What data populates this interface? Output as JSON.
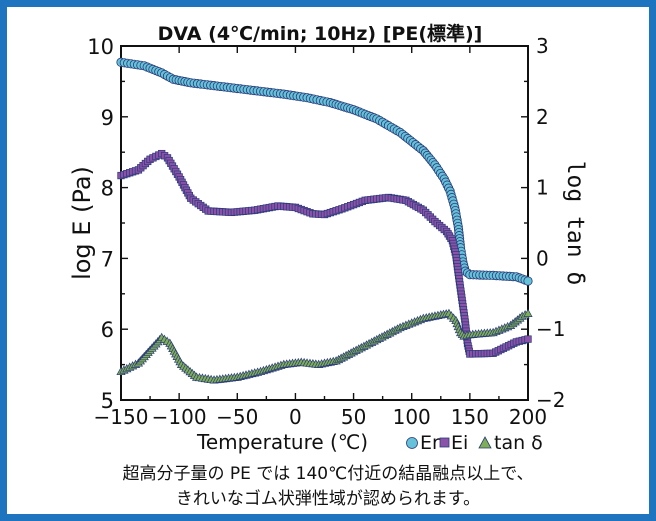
{
  "colors": {
    "frame": "#1f74bf",
    "Er": "#66c2d8",
    "Ei": "#8a52a8",
    "tan_delta": "#7fae57",
    "marker_outline": "#2a3a7a"
  },
  "caption": {
    "line1": "超高分子量の PE では 140℃付近の結晶融点以上で、",
    "line2": "きれいなゴム状弾性域が認められます。"
  },
  "chart_data": {
    "type": "scatter",
    "title": "DVA (4℃/min; 10Hz) [PE(標準)]",
    "xlabel": "Temperature (℃)",
    "ylabel": "log E (Pa)",
    "y2label": "log tan δ",
    "xlim": [
      -150,
      200
    ],
    "ylim": [
      5,
      10
    ],
    "y2lim": [
      -2,
      3
    ],
    "xticks": [
      "−150",
      "−100",
      "−50",
      "0",
      "50",
      "100",
      "150",
      "200"
    ],
    "yticks": [
      "5",
      "6",
      "7",
      "8",
      "9",
      "10"
    ],
    "y2ticks": [
      "−2",
      "−1",
      "0",
      "1",
      "2",
      "3"
    ],
    "legend_position": "below-right",
    "grid": false,
    "series": [
      {
        "name": "Er",
        "axis": "left",
        "marker": "circle",
        "points": [
          [
            -150,
            9.77
          ],
          [
            -130,
            9.72
          ],
          [
            -115,
            9.62
          ],
          [
            -105,
            9.53
          ],
          [
            -90,
            9.48
          ],
          [
            -70,
            9.44
          ],
          [
            -50,
            9.4
          ],
          [
            -30,
            9.36
          ],
          [
            -10,
            9.32
          ],
          [
            10,
            9.27
          ],
          [
            30,
            9.2
          ],
          [
            50,
            9.1
          ],
          [
            70,
            8.97
          ],
          [
            90,
            8.78
          ],
          [
            110,
            8.52
          ],
          [
            120,
            8.32
          ],
          [
            128,
            8.12
          ],
          [
            133,
            7.95
          ],
          [
            137,
            7.72
          ],
          [
            140,
            7.45
          ],
          [
            142,
            7.15
          ],
          [
            144,
            6.95
          ],
          [
            146,
            6.82
          ],
          [
            150,
            6.77
          ],
          [
            170,
            6.76
          ],
          [
            190,
            6.74
          ],
          [
            200,
            6.68
          ]
        ]
      },
      {
        "name": "Ei",
        "axis": "left",
        "marker": "square",
        "points": [
          [
            -150,
            8.17
          ],
          [
            -135,
            8.25
          ],
          [
            -125,
            8.4
          ],
          [
            -115,
            8.48
          ],
          [
            -110,
            8.42
          ],
          [
            -100,
            8.15
          ],
          [
            -90,
            7.85
          ],
          [
            -75,
            7.67
          ],
          [
            -55,
            7.65
          ],
          [
            -35,
            7.68
          ],
          [
            -15,
            7.74
          ],
          [
            0,
            7.72
          ],
          [
            15,
            7.63
          ],
          [
            25,
            7.62
          ],
          [
            40,
            7.7
          ],
          [
            60,
            7.82
          ],
          [
            80,
            7.86
          ],
          [
            95,
            7.82
          ],
          [
            110,
            7.68
          ],
          [
            120,
            7.52
          ],
          [
            130,
            7.38
          ],
          [
            135,
            7.25
          ],
          [
            138,
            7.05
          ],
          [
            140,
            6.8
          ],
          [
            143,
            6.45
          ],
          [
            146,
            6.1
          ],
          [
            148,
            5.8
          ],
          [
            150,
            5.65
          ],
          [
            170,
            5.66
          ],
          [
            190,
            5.82
          ],
          [
            200,
            5.86
          ]
        ]
      },
      {
        "name": "tan δ",
        "axis": "right",
        "marker": "triangle",
        "points": [
          [
            -150,
            -1.6
          ],
          [
            -135,
            -1.48
          ],
          [
            -125,
            -1.3
          ],
          [
            -115,
            -1.12
          ],
          [
            -108,
            -1.2
          ],
          [
            -98,
            -1.5
          ],
          [
            -85,
            -1.68
          ],
          [
            -70,
            -1.72
          ],
          [
            -50,
            -1.68
          ],
          [
            -30,
            -1.6
          ],
          [
            -10,
            -1.5
          ],
          [
            5,
            -1.47
          ],
          [
            20,
            -1.5
          ],
          [
            35,
            -1.45
          ],
          [
            50,
            -1.32
          ],
          [
            70,
            -1.15
          ],
          [
            90,
            -0.98
          ],
          [
            110,
            -0.85
          ],
          [
            125,
            -0.8
          ],
          [
            132,
            -0.78
          ],
          [
            138,
            -0.88
          ],
          [
            142,
            -1.05
          ],
          [
            145,
            -1.1
          ],
          [
            150,
            -1.08
          ],
          [
            170,
            -1.05
          ],
          [
            185,
            -0.95
          ],
          [
            195,
            -0.82
          ],
          [
            200,
            -0.78
          ]
        ]
      }
    ]
  }
}
